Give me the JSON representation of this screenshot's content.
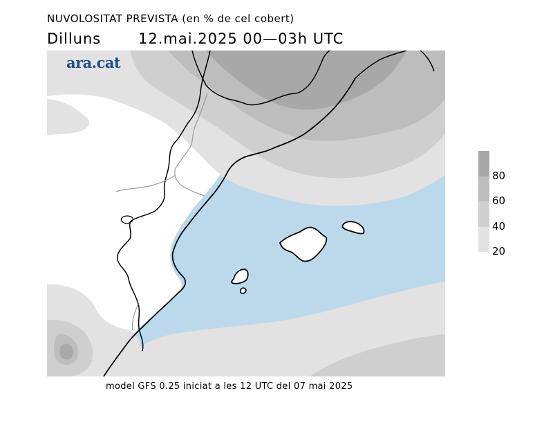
{
  "header": {
    "title": "NUVOLOSITAT PREVISTA (en % de cel cobert)",
    "day": "Dilluns",
    "datetime": "12.mai.2025 00—03h UTC"
  },
  "logo": {
    "text": "ara.cat",
    "color": "#1f4f86"
  },
  "footer": {
    "text": "model GFS 0.25 iniciat a les 12 UTC del 07 mai 2025"
  },
  "legend": {
    "labels": [
      "80",
      "60",
      "40",
      "20"
    ],
    "colors": {
      "80_100": "#a8a8a8",
      "60_80": "#bdbdbd",
      "40_60": "#cfcfcf",
      "20_40": "#e2e2e2",
      "sea_clear": "#bcd9ec",
      "land_clear": "#ffffff"
    }
  }
}
